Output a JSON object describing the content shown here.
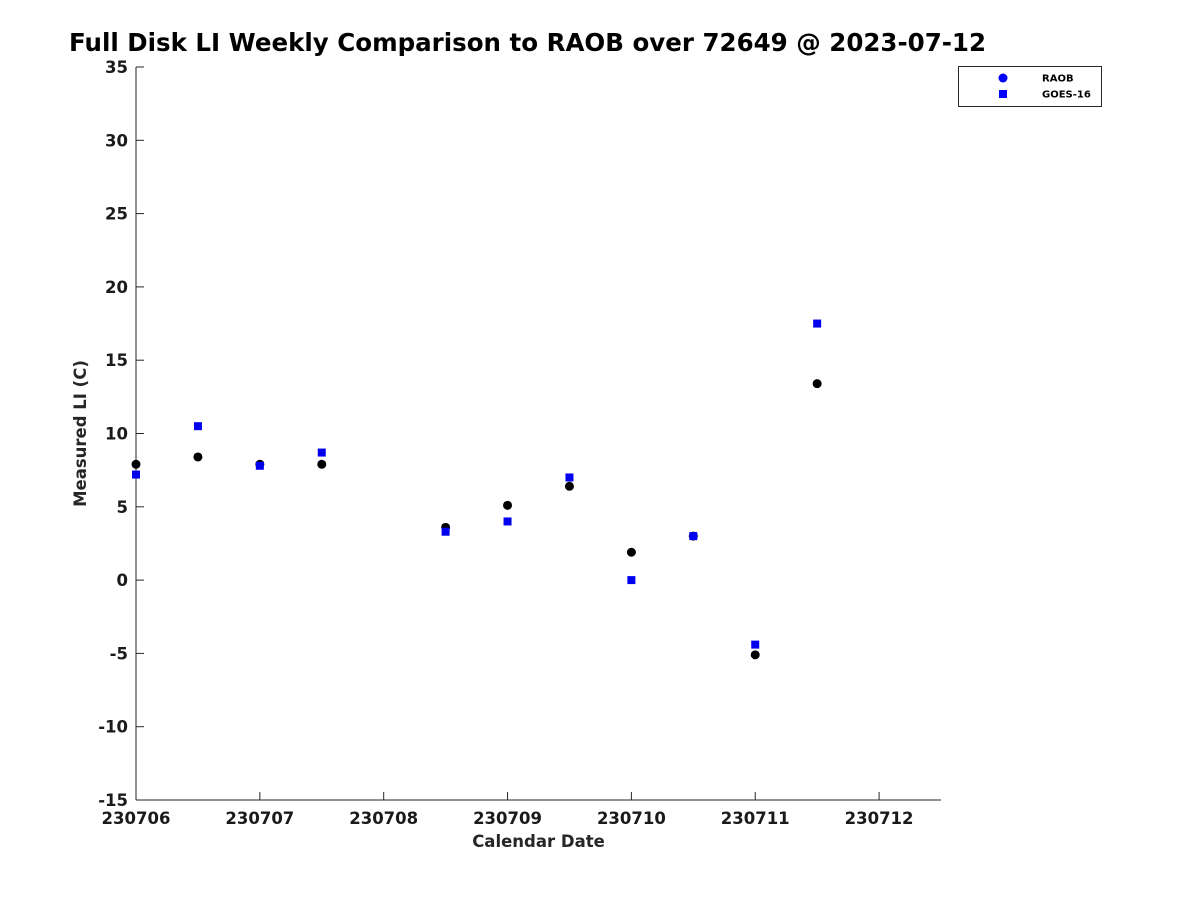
{
  "chart_data": {
    "type": "scatter",
    "title": "Full Disk LI Weekly Comparison to RAOB over 72649 @ 2023-07-12",
    "xlabel": "Calendar Date",
    "ylabel": "Measured LI (C)",
    "xlim": [
      "2023-07-06",
      "2023-07-12 12:00"
    ],
    "ylim": [
      -15,
      35
    ],
    "x_ticks": [
      "230706",
      "230707",
      "230708",
      "230709",
      "230710",
      "230711",
      "230712"
    ],
    "y_ticks": [
      -15,
      -10,
      -5,
      0,
      5,
      10,
      15,
      20,
      25,
      30,
      35
    ],
    "grid": false,
    "legend_position": "top-right",
    "series": [
      {
        "name": "RAOB",
        "marker": "circle",
        "color": "#000000",
        "legend_color": "#0000ff",
        "points": [
          {
            "x": "2023-07-06 00:00",
            "y": 7.9
          },
          {
            "x": "2023-07-06 12:00",
            "y": 8.4
          },
          {
            "x": "2023-07-07 00:00",
            "y": 7.9
          },
          {
            "x": "2023-07-07 12:00",
            "y": 7.9
          },
          {
            "x": "2023-07-08 12:00",
            "y": 3.6
          },
          {
            "x": "2023-07-09 00:00",
            "y": 5.1
          },
          {
            "x": "2023-07-09 12:00",
            "y": 6.4
          },
          {
            "x": "2023-07-10 00:00",
            "y": 1.9
          },
          {
            "x": "2023-07-10 12:00",
            "y": 3.0
          },
          {
            "x": "2023-07-11 00:00",
            "y": -5.1
          },
          {
            "x": "2023-07-11 12:00",
            "y": 13.4
          }
        ]
      },
      {
        "name": "GOES-16",
        "marker": "square",
        "color": "#0000ee",
        "legend_color": "#0000ff",
        "points": [
          {
            "x": "2023-07-06 00:00",
            "y": 7.2
          },
          {
            "x": "2023-07-06 12:00",
            "y": 10.5
          },
          {
            "x": "2023-07-07 00:00",
            "y": 7.8
          },
          {
            "x": "2023-07-07 12:00",
            "y": 8.7
          },
          {
            "x": "2023-07-08 12:00",
            "y": 3.3
          },
          {
            "x": "2023-07-09 00:00",
            "y": 4.0
          },
          {
            "x": "2023-07-09 12:00",
            "y": 7.0
          },
          {
            "x": "2023-07-10 00:00",
            "y": 0.0
          },
          {
            "x": "2023-07-10 12:00",
            "y": 3.0
          },
          {
            "x": "2023-07-11 00:00",
            "y": -4.4
          },
          {
            "x": "2023-07-11 12:00",
            "y": 17.5
          }
        ]
      }
    ]
  }
}
